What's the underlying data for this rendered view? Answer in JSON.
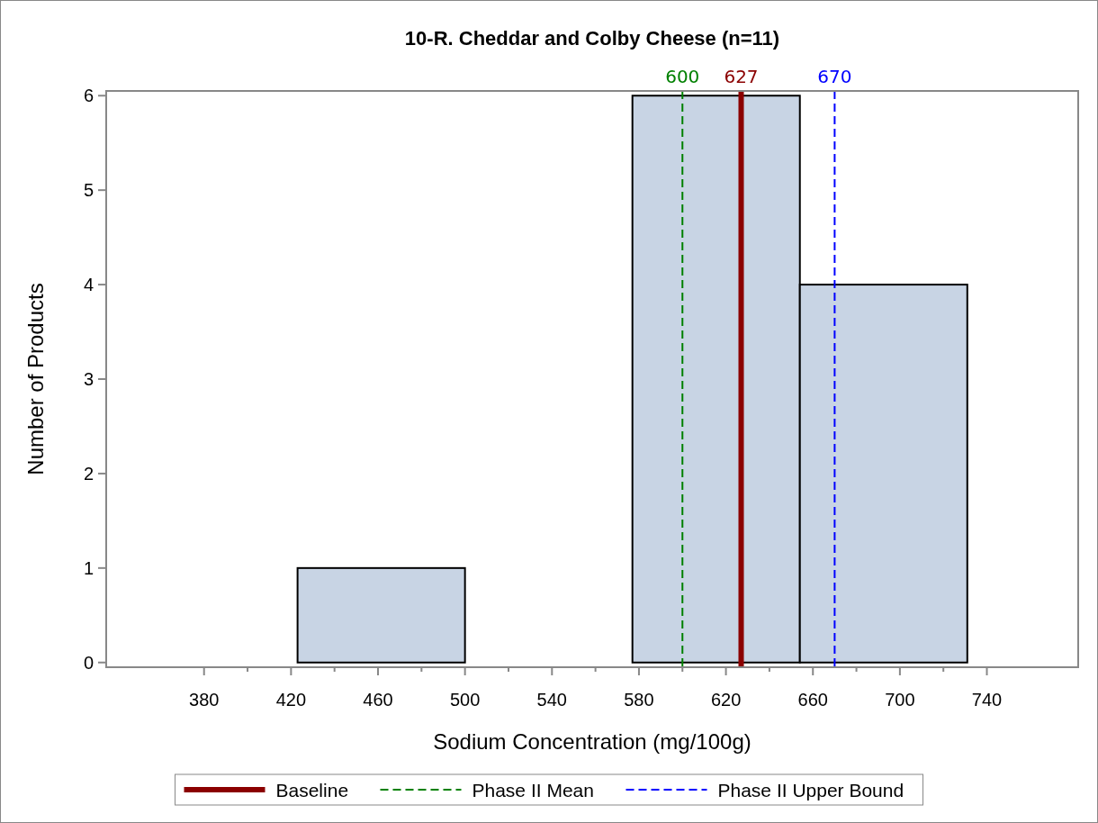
{
  "chart_data": {
    "type": "histogram",
    "title": "10-R. Cheddar and Colby Cheese (n=11)",
    "xlabel": "Sodium Concentration (mg/100g)",
    "ylabel": "Number of Products",
    "bins": [
      346,
      423,
      500,
      577,
      654,
      731
    ],
    "values": [
      0,
      1,
      0,
      6,
      4
    ],
    "color": "#c8d4e4",
    "xlim": [
      335,
      782
    ],
    "xticks": [
      380,
      {
        "value": 400,
        "label": null
      },
      420,
      {
        "value": 440,
        "label": null
      },
      460,
      {
        "value": 480,
        "label": null
      },
      500,
      {
        "value": 520,
        "label": null
      },
      540,
      {
        "value": 560,
        "label": null
      },
      580,
      {
        "value": 600,
        "label": null
      },
      620,
      {
        "value": 640,
        "label": null
      },
      660,
      {
        "value": 680,
        "label": null
      },
      700,
      {
        "value": 720,
        "label": null
      },
      740
    ],
    "ylim": [
      -0.05,
      6.05
    ],
    "yticks": [
      0,
      1,
      2,
      3,
      4,
      5,
      6
    ],
    "ref_lines": [
      {
        "axis": "x",
        "value": 627,
        "label": "Baseline",
        "color": "#8b0000",
        "line_style": "solid"
      },
      {
        "axis": "x",
        "value": 600,
        "label": "Phase II Mean",
        "color": "#008000",
        "line_style": "dashed"
      },
      {
        "axis": "x",
        "value": 670,
        "label": "Phase II Upper Bound",
        "color": "#0000ff",
        "line_style": "dashed"
      }
    ],
    "annotations": [
      "627",
      "600",
      "670"
    ],
    "legend": "bottom",
    "grid": false
  }
}
